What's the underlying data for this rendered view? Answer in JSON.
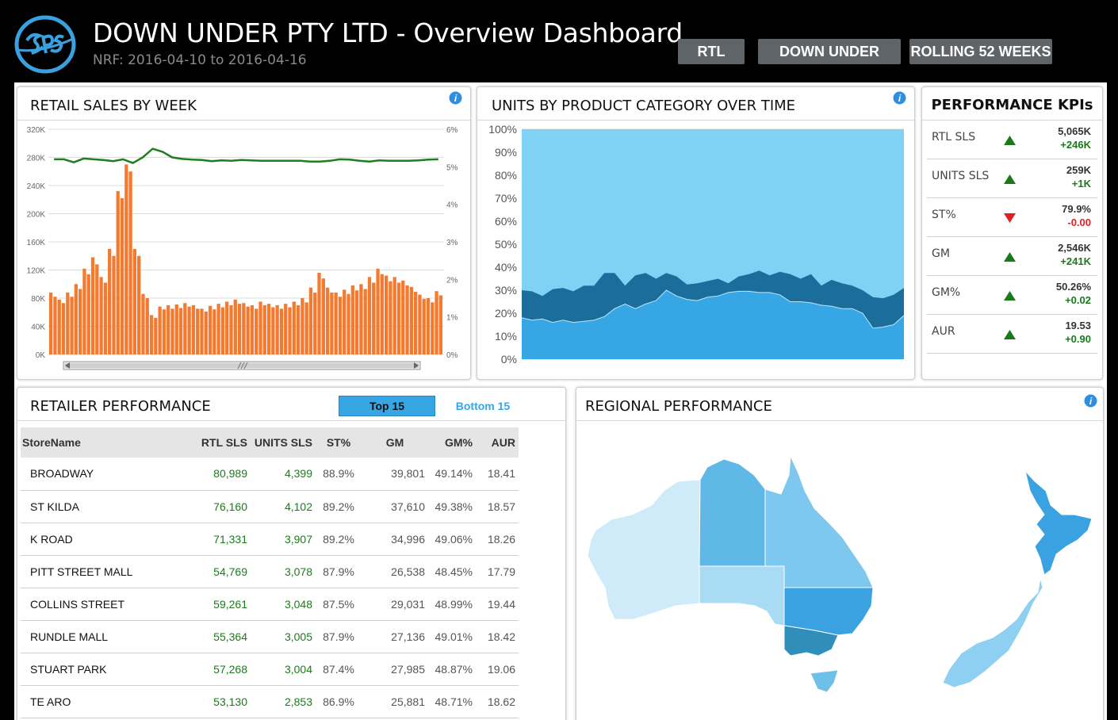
{
  "header": {
    "title": "DOWN UNDER PTY LTD - Overview Dashboard",
    "subtitle": "NRF: 2016-04-10 to 2016-04-16",
    "filters": [
      "RTL",
      "DOWN UNDER",
      "ROLLING 52 WEEKS"
    ]
  },
  "colors": {
    "bar": "#f47a30",
    "line": "#1f7f1f",
    "area_top": "#7fd2f4",
    "area_mid": "#1b6e9c",
    "area_bottom": "#36a6e4",
    "positive": "#1a7a1a",
    "negative": "#e02020",
    "tab_active": "#36a6e4"
  },
  "retail_sales": {
    "title": "RETAIL SALES BY WEEK",
    "icon": "info-icon",
    "chart_data": {
      "type": "bar",
      "y_left_ticks": [
        "0K",
        "40K",
        "80K",
        "120K",
        "160K",
        "200K",
        "240K",
        "280K",
        "320K"
      ],
      "y_right_ticks": [
        "0%",
        "1%",
        "2%",
        "3%",
        "4%",
        "5%",
        "6%"
      ],
      "ylim_left": [
        0,
        320
      ],
      "ylim_right": [
        0,
        6
      ],
      "bars": [
        [
          88,
          82
        ],
        [
          78,
          73
        ],
        [
          88,
          82
        ],
        [
          100,
          93
        ],
        [
          122,
          114
        ],
        [
          138,
          128
        ],
        [
          110,
          102
        ],
        [
          150,
          140
        ],
        [
          232,
          222
        ],
        [
          270,
          260
        ],
        [
          150,
          140
        ],
        [
          86,
          80
        ],
        [
          56,
          52
        ],
        [
          68,
          64
        ],
        [
          70,
          65
        ],
        [
          71,
          66
        ],
        [
          73,
          68
        ],
        [
          70,
          65
        ],
        [
          65,
          61
        ],
        [
          69,
          64
        ],
        [
          72,
          67
        ],
        [
          75,
          70
        ],
        [
          78,
          72
        ],
        [
          73,
          68
        ],
        [
          70,
          65
        ],
        [
          75,
          70
        ],
        [
          72,
          67
        ],
        [
          70,
          65
        ],
        [
          72,
          67
        ],
        [
          75,
          70
        ],
        [
          80,
          74
        ],
        [
          95,
          88
        ],
        [
          116,
          108
        ],
        [
          95,
          88
        ],
        [
          88,
          82
        ],
        [
          92,
          86
        ],
        [
          98,
          91
        ],
        [
          100,
          93
        ],
        [
          110,
          102
        ],
        [
          122,
          114
        ],
        [
          112,
          104
        ],
        [
          110,
          102
        ],
        [
          105,
          98
        ],
        [
          96,
          89
        ],
        [
          85,
          79
        ],
        [
          80,
          74
        ],
        [
          90,
          84
        ]
      ],
      "line": [
        5.2,
        5.2,
        5.12,
        5.22,
        5.2,
        5.18,
        5.15,
        5.2,
        5.1,
        5.25,
        5.48,
        5.4,
        5.25,
        5.21,
        5.19,
        5.18,
        5.15,
        5.17,
        5.16,
        5.18,
        5.17,
        5.16,
        5.16,
        5.16,
        5.16,
        5.16,
        5.14,
        5.14,
        5.16,
        5.2,
        5.19,
        5.16,
        5.14,
        5.17,
        5.16,
        5.16,
        5.16,
        5.17,
        5.19,
        5.2
      ],
      "line_lead": [
        5.2,
        5.2,
        5.12,
        5.22,
        5.2,
        5.18,
        5.15,
        5.2,
        5.1
      ],
      "line_tail": [
        5.15,
        5.15,
        5.15,
        5.15,
        5.15,
        5.15,
        5.16,
        5.16,
        5.16,
        5.18,
        5.2,
        5.17
      ],
      "scrollbar": true
    }
  },
  "units_category": {
    "title": "UNITS BY PRODUCT CATEGORY OVER TIME",
    "icon": "info-icon",
    "chart_data": {
      "type": "area",
      "stacked_percent": true,
      "y_ticks": [
        "0%",
        "10%",
        "20%",
        "30%",
        "40%",
        "50%",
        "60%",
        "70%",
        "80%",
        "90%",
        "100%"
      ],
      "ylim": [
        0,
        100
      ],
      "bottom_series": [
        18,
        17,
        17.5,
        16,
        17,
        16,
        16.5,
        17,
        18.5,
        22,
        24,
        22,
        24,
        25.5,
        30,
        27.5,
        26,
        25.5,
        27,
        27.5,
        29,
        29.5,
        29.5,
        29,
        29,
        28,
        25,
        25,
        24.5,
        23.5,
        23,
        22,
        22,
        20,
        13.5,
        14,
        15,
        19
      ],
      "top_series": [
        30,
        29.5,
        27.5,
        30.5,
        31,
        29.5,
        32,
        32,
        37.5,
        37.5,
        32,
        36.5,
        37.5,
        35,
        37.5,
        36,
        32.5,
        33,
        34,
        35,
        33,
        36,
        37,
        38.5,
        36.5,
        38,
        37,
        35,
        37,
        32,
        34.5,
        33,
        32,
        30,
        27,
        26.5,
        28,
        31
      ]
    }
  },
  "kpis": {
    "title": "PERFORMANCE KPIs",
    "rows": [
      {
        "label": "RTL SLS",
        "value": "5,065K",
        "delta": "+246K",
        "dir": "up"
      },
      {
        "label": "UNITS SLS",
        "value": "259K",
        "delta": "+1K",
        "dir": "up"
      },
      {
        "label": "ST%",
        "value": "79.9%",
        "delta": "-0.00",
        "dir": "down"
      },
      {
        "label": "GM",
        "value": "2,546K",
        "delta": "+241K",
        "dir": "up"
      },
      {
        "label": "GM%",
        "value": "50.26%",
        "delta": "+0.02",
        "dir": "up"
      },
      {
        "label": "AUR",
        "value": "19.53",
        "delta": "+0.90",
        "dir": "up"
      }
    ]
  },
  "retailer": {
    "title": "RETAILER PERFORMANCE",
    "tabs": {
      "top": "Top 15",
      "bottom": "Bottom 15"
    },
    "columns": [
      "StoreName",
      "RTL SLS",
      "UNITS SLS",
      "ST%",
      "GM",
      "GM%",
      "AUR"
    ],
    "rows": [
      [
        "BROADWAY",
        "80,989",
        "4,399",
        "88.9%",
        "39,801",
        "49.14%",
        "18.41"
      ],
      [
        "ST KILDA",
        "76,160",
        "4,102",
        "89.2%",
        "37,610",
        "49.38%",
        "18.57"
      ],
      [
        "K ROAD",
        "71,331",
        "3,907",
        "89.2%",
        "34,996",
        "49.06%",
        "18.26"
      ],
      [
        "PITT STREET MALL",
        "54,769",
        "3,078",
        "87.9%",
        "26,538",
        "48.45%",
        "17.79"
      ],
      [
        "COLLINS STREET",
        "59,261",
        "3,048",
        "87.5%",
        "29,031",
        "48.99%",
        "19.44"
      ],
      [
        "RUNDLE MALL",
        "55,364",
        "3,005",
        "87.9%",
        "27,136",
        "49.01%",
        "18.42"
      ],
      [
        "STUART PARK",
        "57,268",
        "3,004",
        "87.4%",
        "27,985",
        "48.87%",
        "19.06"
      ],
      [
        "TE ARO",
        "53,130",
        "2,853",
        "86.9%",
        "25,881",
        "48.71%",
        "18.62"
      ]
    ]
  },
  "regional": {
    "title": "REGIONAL PERFORMANCE",
    "icon": "info-icon",
    "regions": [
      {
        "name": "WA",
        "color": "#cfeaf8"
      },
      {
        "name": "NT",
        "color": "#5fb8e6"
      },
      {
        "name": "QLD",
        "color": "#7ec7ee"
      },
      {
        "name": "SA",
        "color": "#a9dbf5"
      },
      {
        "name": "NSW",
        "color": "#3ba2e2"
      },
      {
        "name": "VIC",
        "color": "#2f8fba"
      },
      {
        "name": "TAS",
        "color": "#6ec0ea"
      },
      {
        "name": "NZ North",
        "color": "#3ba2e2"
      },
      {
        "name": "NZ South",
        "color": "#8fcff1"
      }
    ]
  }
}
